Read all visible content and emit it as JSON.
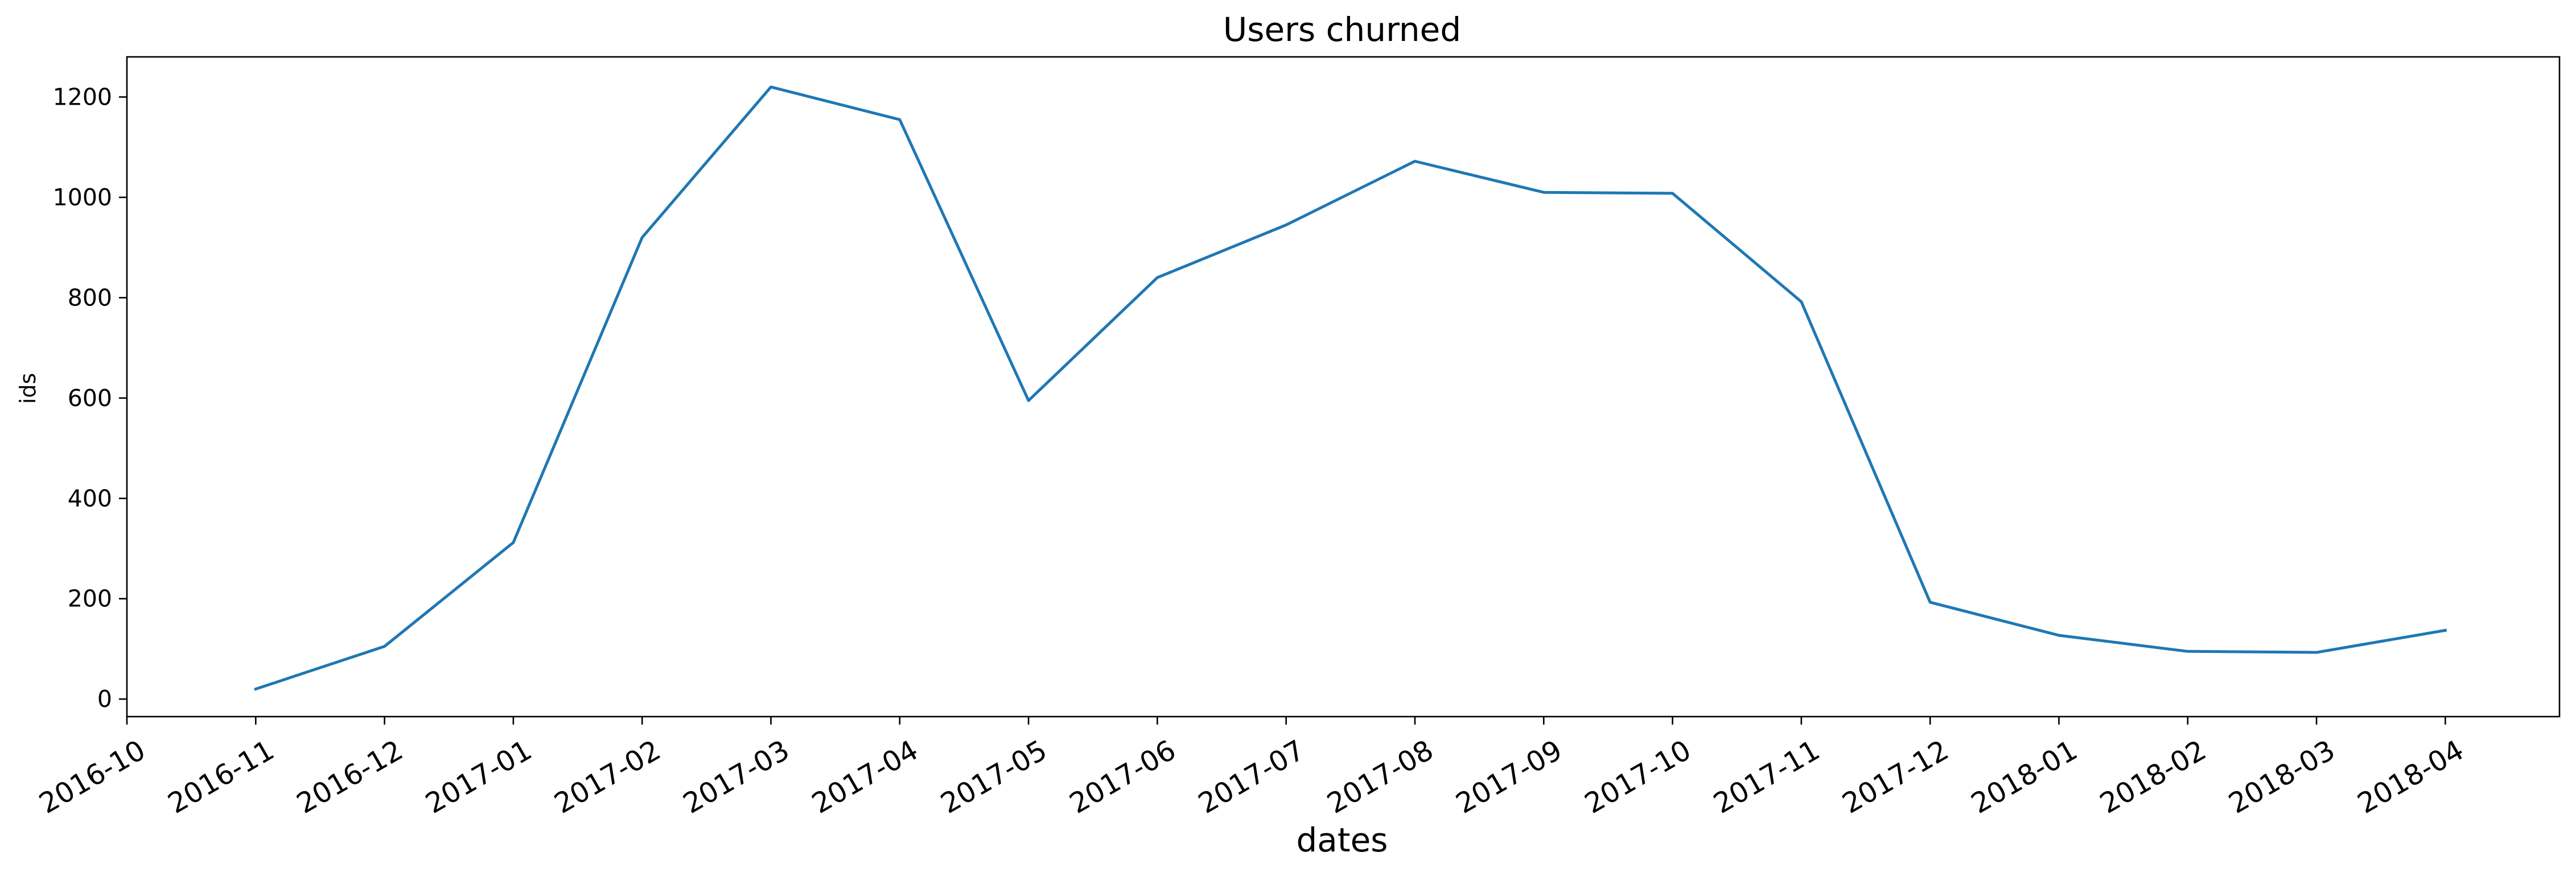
{
  "chart_data": {
    "type": "line",
    "title": "Users churned",
    "xlabel": "dates",
    "ylabel": "ids",
    "x_ticks": [
      "2016-10",
      "2016-11",
      "2016-12",
      "2017-01",
      "2017-02",
      "2017-03",
      "2017-04",
      "2017-05",
      "2017-06",
      "2017-07",
      "2017-08",
      "2017-09",
      "2017-10",
      "2017-11",
      "2017-12",
      "2018-01",
      "2018-02",
      "2018-03",
      "2018-04"
    ],
    "x_range": [
      "2016-10",
      "2018-04 (+~0.8 month)"
    ],
    "y_ticks": [
      0,
      200,
      400,
      600,
      800,
      1000,
      1200
    ],
    "ylim": [
      -35,
      1280
    ],
    "grid": false,
    "color": "#1f77b4",
    "series": [
      {
        "x": [
          "2016-11",
          "2016-12",
          "2017-01",
          "2017-02",
          "2017-03",
          "2017-04",
          "2017-05",
          "2017-06",
          "2017-07",
          "2017-08",
          "2017-09",
          "2017-10",
          "2017-11",
          "2017-12",
          "2018-01",
          "2018-02",
          "2018-03",
          "2018-04"
        ],
        "values": [
          20,
          105,
          312,
          920,
          1220,
          1155,
          595,
          840,
          945,
          1072,
          1010,
          1008,
          792,
          193,
          127,
          95,
          93,
          137
        ]
      }
    ]
  }
}
